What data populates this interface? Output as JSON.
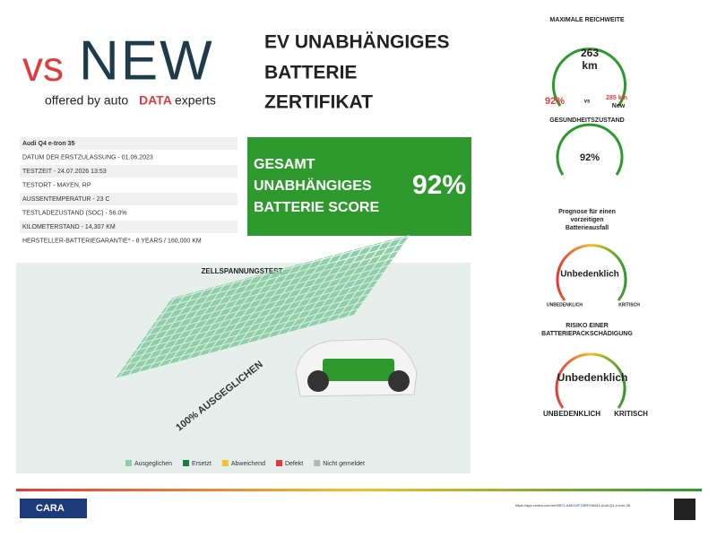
{
  "logo": {
    "vs": "vs",
    "new": "NEW",
    "offered": "offered by auto",
    "data": "DATA",
    "experts": "experts"
  },
  "title": [
    "EV UNABHÄNGIGES",
    "BATTERIE",
    "ZERTIFIKAT"
  ],
  "details": [
    "Audi Q4 e-tron 35",
    "DATUM DER ERSTZULASSUNG - 01.06.2023",
    "TESTZEIT - 24.07.2026 13:53",
    "TESTORT - MAYEN, RP",
    "AUSSENTEMPERATUR - 23 C",
    "TESTLADEZUSTAND (SOC) - 56.0%",
    "KILOMETERSTAND - 14,307 KM",
    "HERSTELLER-BATTERIEGARANTIE* - 8 YEARS / 160,000 KM"
  ],
  "score": {
    "label": [
      "GESAMT",
      "UNABHÄNGIGES",
      "BATTERIE SCORE"
    ],
    "value": "92%"
  },
  "cell_test": {
    "title": "ZELLSPANNUNGSTEST",
    "caption": "100% AUSGEGLICHEN",
    "legend": [
      {
        "label": "Ausgeglichen",
        "color": "#8fcfa8"
      },
      {
        "label": "Ersetzt",
        "color": "#1f7a3f"
      },
      {
        "label": "Abweichend",
        "color": "#f2c12e"
      },
      {
        "label": "Defekt",
        "color": "#e23b3b"
      },
      {
        "label": "Nicht gemeldet",
        "color": "#b5b5b5"
      }
    ]
  },
  "range": {
    "title": "MAXIMALE REICHWEITE",
    "value": "263",
    "unit": "km",
    "percent": "92%",
    "vs": "vs",
    "new_value": "285 km",
    "new_label": "New"
  },
  "health": {
    "title": "GESUNDHEITSZUSTAND",
    "value": "92%"
  },
  "prognosis": {
    "title": [
      "Prognose für einen",
      "vorzeitigen",
      "Batterieausfall"
    ],
    "status": "Unbedenklich",
    "left": "UNBEDENKLICH",
    "right": "KRITISCH"
  },
  "risk": {
    "title": [
      "RISIKO EINER",
      "BATTERIEPACKSCHÄDIGUNG"
    ],
    "status": "Unbedenklich",
    "left": "UNBEDENKLICH",
    "right": "KRITISCH"
  },
  "footer": {
    "org": "CARA",
    "link": "https://app.vsnew.com/en/9B72-A6E2/2F23RF/08433-Audi-Q4-e-tron-35"
  }
}
